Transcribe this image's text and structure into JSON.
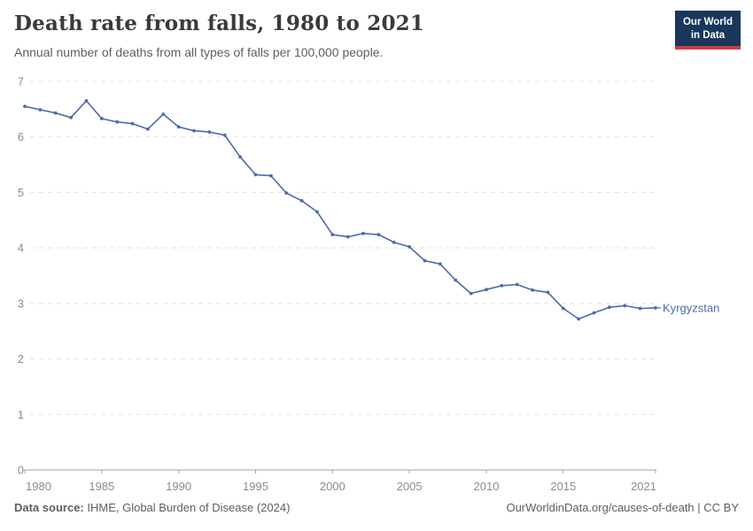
{
  "header": {
    "title": "Death rate from falls, 1980 to 2021",
    "subtitle": "Annual number of deaths from all types of falls per 100,000 people."
  },
  "logo": {
    "line1": "Our World",
    "line2": "in Data"
  },
  "footer": {
    "source_label": "Data source:",
    "source_text": " IHME, Global Burden of Disease (2024)",
    "right_text": "OurWorldinData.org/causes-of-death | CC BY"
  },
  "colors": {
    "line": "#4c6ca8",
    "grid": "#e3e3e3",
    "axis": "#a6a6a6",
    "tick_label": "#8c8c8c",
    "logo_navy": "#18375a",
    "logo_red": "#cf3e41"
  },
  "chart_data": {
    "type": "line",
    "title": "Death rate from falls, 1980 to 2021",
    "subtitle": "Annual number of deaths from all types of falls per 100,000 people.",
    "xlabel": "",
    "ylabel": "",
    "x_range": [
      1980,
      2021
    ],
    "ylim": [
      0,
      7
    ],
    "yticks": [
      0,
      1,
      2,
      3,
      4,
      5,
      6,
      7
    ],
    "xticks": [
      1980,
      1985,
      1990,
      1995,
      2000,
      2005,
      2010,
      2015,
      2021
    ],
    "grid": "horizontal-dashed",
    "legend_position": "end-of-line-label",
    "end_label": "Kyrgyzstan",
    "series": [
      {
        "name": "Kyrgyzstan",
        "color": "#4c6ca8",
        "x": [
          1980,
          1981,
          1982,
          1983,
          1984,
          1985,
          1986,
          1987,
          1988,
          1989,
          1990,
          1991,
          1992,
          1993,
          1994,
          1995,
          1996,
          1997,
          1998,
          1999,
          2000,
          2001,
          2002,
          2003,
          2004,
          2005,
          2006,
          2007,
          2008,
          2009,
          2010,
          2011,
          2012,
          2013,
          2014,
          2015,
          2016,
          2017,
          2018,
          2019,
          2020,
          2021
        ],
        "values": [
          6.55,
          6.49,
          6.43,
          6.35,
          6.65,
          6.33,
          6.27,
          6.24,
          6.14,
          6.41,
          6.18,
          6.11,
          6.09,
          6.03,
          5.64,
          5.32,
          5.3,
          4.99,
          4.85,
          4.65,
          4.24,
          4.2,
          4.26,
          4.24,
          4.1,
          4.02,
          3.77,
          3.71,
          3.42,
          3.18,
          3.25,
          3.32,
          3.34,
          3.24,
          3.2,
          2.91,
          2.72,
          2.83,
          2.93,
          2.96,
          2.91,
          2.92
        ]
      }
    ]
  }
}
